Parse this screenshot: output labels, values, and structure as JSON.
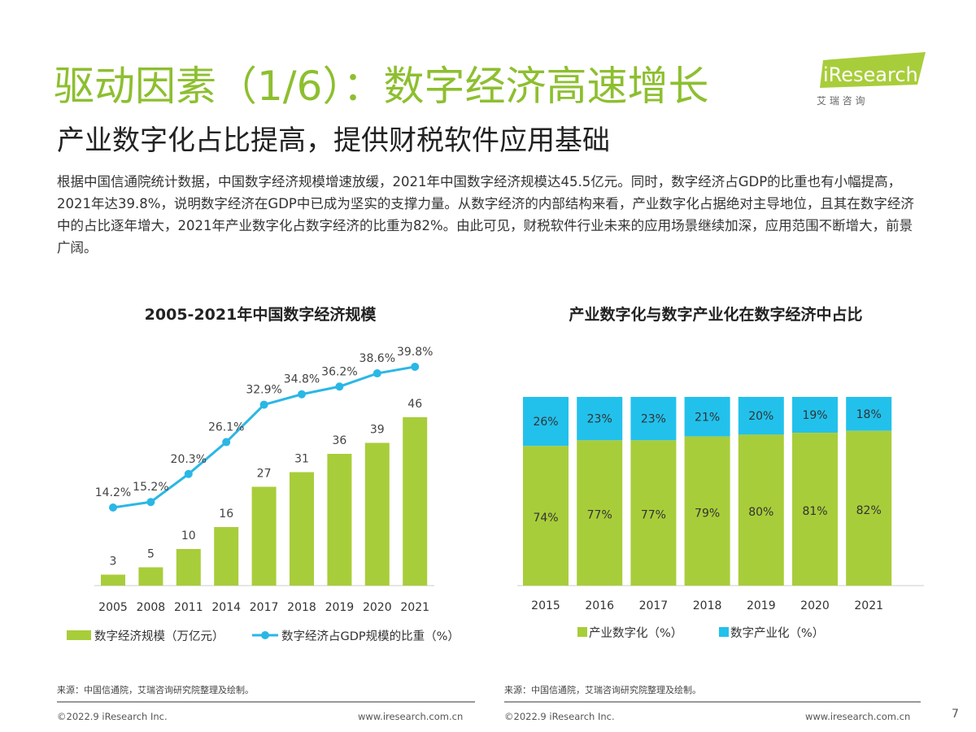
{
  "header": {
    "title": "驱动因素（1/6）：数字经济高速增长",
    "subtitle": "产业数字化占比提高，提供财税软件应用基础",
    "logo": {
      "text": "iResearch",
      "sub": "艾 瑞 咨 询"
    }
  },
  "body_text": "根据中国信通院统计数据，中国数字经济规模增速放缓，2021年中国数字经济规模达45.5亿元。同时，数字经济占GDP的比重也有小幅提高，2021年达39.8%，说明数字经济在GDP中已成为坚实的支撑力量。从数字经济的内部结构来看，产业数字化占据绝对主导地位，且其在数字经济中的占比逐年增大，2021年产业数字化占数字经济的比重为82%。由此可见，财税软件行业未来的应用场景继续加深，应用范围不断增大，前景广阔。",
  "colors": {
    "title_green": "#8dbf2f",
    "bar_green": "#a8cd3a",
    "line_blue": "#2ab7e6",
    "cyan": "#22c1ec"
  },
  "chart_data": [
    {
      "type": "bar+line",
      "title": "2005-2021年中国数字经济规模",
      "categories": [
        "2005",
        "2008",
        "2011",
        "2014",
        "2017",
        "2018",
        "2019",
        "2020",
        "2021"
      ],
      "series": [
        {
          "name": "数字经济规模（万亿元）",
          "type": "bar",
          "values": [
            3,
            5,
            10,
            16,
            27,
            31,
            36,
            39,
            46
          ]
        },
        {
          "name": "数字经济占GDP规模的比重（%）",
          "type": "line",
          "values": [
            14.2,
            15.2,
            20.3,
            26.1,
            32.9,
            34.8,
            36.2,
            38.6,
            39.8
          ],
          "labels": [
            "14.2%",
            "15.2%",
            "20.3%",
            "26.1%",
            "32.9%",
            "34.8%",
            "36.2%",
            "38.6%",
            "39.8%"
          ]
        }
      ],
      "legend": "bottom"
    },
    {
      "type": "stacked-bar",
      "title": "产业数字化与数字产业化在数字经济中占比",
      "categories": [
        "2015",
        "2016",
        "2017",
        "2018",
        "2019",
        "2020",
        "2021"
      ],
      "series": [
        {
          "name": "产业数字化（%）",
          "values": [
            74,
            77,
            77,
            79,
            80,
            81,
            82
          ]
        },
        {
          "name": "数字产业化（%）",
          "values": [
            26,
            23,
            23,
            21,
            20,
            19,
            18
          ]
        }
      ],
      "legend": "bottom"
    }
  ],
  "footer": {
    "source": "来源：中国信通院，艾瑞咨询研究院整理及绘制。",
    "copyright": "©2022.9 iResearch Inc.",
    "url": "www.iresearch.com.cn",
    "page": "7"
  }
}
